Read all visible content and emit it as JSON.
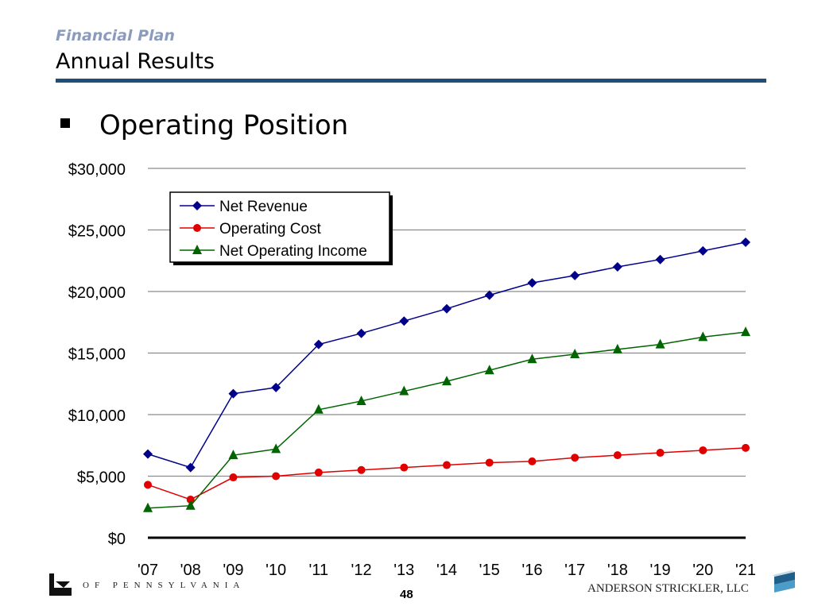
{
  "header": {
    "section": "Financial Plan",
    "title": "Annual Results"
  },
  "bullet": "Operating Position",
  "chart_data": {
    "type": "line",
    "categories": [
      "'07",
      "'08",
      "'09",
      "'10",
      "'11",
      "'12",
      "'13",
      "'14",
      "'15",
      "'16",
      "'17",
      "'18",
      "'19",
      "'20",
      "'21"
    ],
    "y_ticks": [
      "$0",
      "$5,000",
      "$10,000",
      "$15,000",
      "$20,000",
      "$25,000",
      "$30,000"
    ],
    "ylim": [
      0,
      30000
    ],
    "grid": true,
    "legend_position": "top-left",
    "series": [
      {
        "name": "Net Revenue",
        "color": "#00008b",
        "marker": "diamond",
        "values": [
          6800,
          5700,
          11700,
          12200,
          15700,
          16600,
          17600,
          18600,
          19700,
          20700,
          21300,
          22000,
          22600,
          23300,
          24000
        ]
      },
      {
        "name": "Operating Cost",
        "color": "#e00000",
        "marker": "circle",
        "values": [
          4300,
          3100,
          4900,
          5000,
          5300,
          5500,
          5700,
          5900,
          6100,
          6200,
          6500,
          6700,
          6900,
          7100,
          7300
        ]
      },
      {
        "name": "Net Operating Income",
        "color": "#006400",
        "marker": "triangle",
        "values": [
          2400,
          2600,
          6700,
          7200,
          10400,
          11100,
          11900,
          12700,
          13600,
          14500,
          14900,
          15300,
          15700,
          16300,
          16700
        ]
      }
    ]
  },
  "footer": {
    "logo_text": "OF PENNSYLVANIA",
    "page_number": "48",
    "firm": "ANDERSON STRICKLER, LLC"
  }
}
